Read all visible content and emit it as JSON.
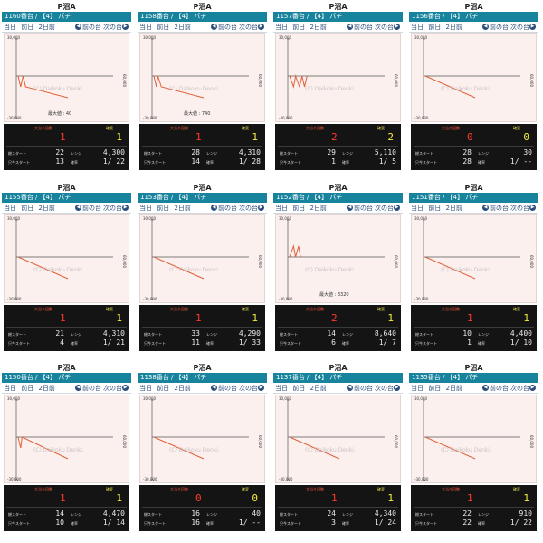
{
  "cards": [
    {
      "machine": "P沼A",
      "header": "1160番台 / 【4】 パチ",
      "max": "最大値 : 40",
      "ohatari": "1",
      "kakuhen": "1",
      "total_start": "22",
      "rensa": "4,300",
      "just_start": "13",
      "kakuritsu": "1/ 22",
      "line": [
        [
          0,
          0
        ],
        [
          5,
          -1
        ],
        [
          10,
          0
        ],
        [
          15,
          -1
        ],
        [
          100,
          -2
        ]
      ]
    },
    {
      "machine": "P沼A",
      "header": "1158番台 / 【4】 パチ",
      "max": "最大値 : 740",
      "ohatari": "1",
      "kakuhen": "1",
      "total_start": "28",
      "rensa": "4,310",
      "just_start": "14",
      "kakuritsu": "1/ 28",
      "line": [
        [
          0,
          0
        ],
        [
          5,
          -1
        ],
        [
          8,
          0
        ],
        [
          15,
          -1
        ],
        [
          100,
          -2
        ]
      ]
    },
    {
      "machine": "P沼A",
      "header": "1157番台 / 【4】 パチ",
      "max": "",
      "ohatari": "2",
      "kakuhen": "2",
      "total_start": "29",
      "rensa": "5,110",
      "just_start": "1",
      "kakuritsu": "1/ 5",
      "line": [
        [
          0,
          0
        ],
        [
          8,
          -1
        ],
        [
          12,
          0
        ],
        [
          20,
          -1
        ],
        [
          25,
          0
        ],
        [
          30,
          -1
        ],
        [
          35,
          0
        ]
      ]
    },
    {
      "machine": "P沼A",
      "header": "1156番台 / 【4】 パチ",
      "max": "",
      "ohatari": "0",
      "kakuhen": "0",
      "total_start": "28",
      "rensa": "30",
      "just_start": "28",
      "kakuritsu": "1/ --",
      "line": [
        [
          0,
          0
        ],
        [
          100,
          -2
        ]
      ]
    },
    {
      "machine": "P沼A",
      "header": "1155番台 / 【4】 パチ",
      "max": "",
      "ohatari": "1",
      "kakuhen": "1",
      "total_start": "21",
      "rensa": "4,310",
      "just_start": "4",
      "kakuritsu": "1/ 21",
      "line": [
        [
          0,
          0
        ],
        [
          100,
          -2
        ]
      ]
    },
    {
      "machine": "P沼A",
      "header": "1153番台 / 【4】 パチ",
      "max": "",
      "ohatari": "1",
      "kakuhen": "1",
      "total_start": "33",
      "rensa": "4,290",
      "just_start": "11",
      "kakuritsu": "1/ 33",
      "line": [
        [
          0,
          0
        ],
        [
          100,
          -2
        ]
      ]
    },
    {
      "machine": "P沼A",
      "header": "1152番台 / 【4】 パチ",
      "max": "最大値 : 3320",
      "ohatari": "2",
      "kakuhen": "1",
      "total_start": "14",
      "rensa": "8,640",
      "just_start": "6",
      "kakuritsu": "1/ 7",
      "line": [
        [
          0,
          0
        ],
        [
          8,
          1
        ],
        [
          12,
          0
        ],
        [
          18,
          1
        ],
        [
          22,
          0
        ]
      ]
    },
    {
      "machine": "P沼A",
      "header": "1151番台 / 【4】 パチ",
      "max": "",
      "ohatari": "1",
      "kakuhen": "1",
      "total_start": "10",
      "rensa": "4,400",
      "just_start": "1",
      "kakuritsu": "1/ 10",
      "line": [
        [
          0,
          0
        ],
        [
          100,
          -2
        ]
      ]
    },
    {
      "machine": "P沼A",
      "header": "1150番台 / 【4】 パチ",
      "max": "",
      "ohatari": "1",
      "kakuhen": "1",
      "total_start": "14",
      "rensa": "4,470",
      "just_start": "10",
      "kakuritsu": "1/ 14",
      "line": [
        [
          0,
          0
        ],
        [
          5,
          -1
        ],
        [
          8,
          0
        ],
        [
          100,
          -2
        ]
      ]
    },
    {
      "machine": "P沼A",
      "header": "1138番台 / 【4】 パチ",
      "max": "",
      "ohatari": "0",
      "kakuhen": "0",
      "total_start": "16",
      "rensa": "40",
      "just_start": "16",
      "kakuritsu": "1/ --",
      "line": [
        [
          0,
          0
        ],
        [
          100,
          -2
        ]
      ]
    },
    {
      "machine": "P沼A",
      "header": "1137番台 / 【4】 パチ",
      "max": "",
      "ohatari": "1",
      "kakuhen": "1",
      "total_start": "24",
      "rensa": "4,340",
      "just_start": "3",
      "kakuritsu": "1/ 24",
      "line": [
        [
          0,
          0
        ],
        [
          100,
          -2
        ]
      ]
    },
    {
      "machine": "P沼A",
      "header": "1135番台 / 【4】 パチ",
      "max": "",
      "ohatari": "1",
      "kakuhen": "1",
      "total_start": "22",
      "rensa": "910",
      "just_start": "22",
      "kakuritsu": "1/ 22",
      "line": [
        [
          0,
          0
        ],
        [
          100,
          -2
        ]
      ]
    }
  ],
  "labels": {
    "today": "当日",
    "prev_day": "前日",
    "two_days": "2日前",
    "prev_machine": "前の台",
    "next_machine": "次の台",
    "ohatari": "大当り回数",
    "kakuhen": "確変",
    "total_start": "総スタート",
    "rensa": "レンジ",
    "just_start": "只今スタート",
    "kakuritsu": "確率",
    "y_top": "30,000",
    "y_bottom": "-30,000",
    "x_right": "60,000",
    "watermark": "(C) Daikoku Denki."
  }
}
